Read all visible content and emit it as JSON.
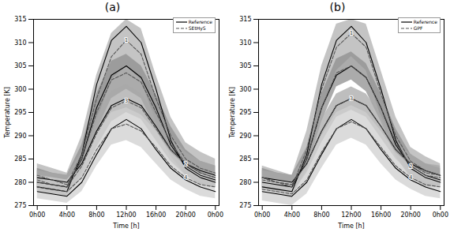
{
  "chart_data": [
    {
      "type": "line",
      "title": "(a)",
      "x_label": "Time [h]",
      "y_label": "Temperature [K]",
      "x": [
        0,
        2,
        4,
        6,
        8,
        10,
        12,
        14,
        16,
        18,
        20,
        22,
        24
      ],
      "xlim": [
        -0.5,
        24.5
      ],
      "xticks": [
        {
          "value": 0,
          "label": "0h00"
        },
        {
          "value": 4,
          "label": "4h00"
        },
        {
          "value": 8,
          "label": "8h00"
        },
        {
          "value": 12,
          "label": "12h00"
        },
        {
          "value": 16,
          "label": "16h00"
        },
        {
          "value": 20,
          "label": "20h00"
        },
        {
          "value": 24,
          "label": "0h00"
        }
      ],
      "ylim": [
        275,
        315
      ],
      "yticks": [
        275,
        280,
        285,
        290,
        295,
        300,
        305,
        310,
        315
      ],
      "legend": "upper right",
      "series": [
        {
          "name": "Reference",
          "color": "#000000",
          "line_style": "solid",
          "values": [
            279,
            278.5,
            278,
            286,
            301,
            310.5,
            313.5,
            310,
            300,
            289,
            283,
            281,
            280
          ]
        },
        {
          "name": "Reference",
          "color": "#000000",
          "line_style": "solid",
          "values": [
            280,
            279.5,
            279,
            285,
            296,
            303,
            305,
            302.5,
            296,
            288,
            283.5,
            281.5,
            280.5
          ]
        },
        {
          "name": "Reference",
          "color": "#000000",
          "line_style": "solid",
          "values": [
            281,
            280.5,
            280,
            284,
            291,
            296.5,
            298,
            296.5,
            292,
            287,
            284,
            282.5,
            281.5
          ]
        },
        {
          "name": "Reference",
          "color": "#000000",
          "line_style": "solid",
          "values": [
            278,
            277.5,
            277,
            280,
            286,
            291.5,
            293.5,
            291.5,
            287,
            283,
            280.5,
            279,
            278
          ]
        },
        {
          "name": "SEtHyS",
          "color": "#555555",
          "line_style": "dashed",
          "label": "1",
          "values": [
            281.5,
            280.5,
            279.5,
            286,
            298,
            307,
            310.5,
            307.5,
            298,
            290,
            285,
            283,
            282
          ],
          "lower": [
            279,
            278,
            277,
            282,
            293,
            302,
            305,
            302,
            293,
            286,
            281.5,
            279.5,
            279
          ],
          "upper": [
            284,
            283,
            282,
            290,
            303,
            312,
            315,
            313,
            303,
            294,
            288.5,
            286.5,
            285
          ]
        },
        {
          "name": "SEtHyS",
          "color": "#555555",
          "line_style": "dashed",
          "label": "2",
          "values": [
            280.5,
            279.5,
            279,
            285,
            295,
            302,
            303.5,
            301.5,
            295,
            288.5,
            284,
            282,
            281
          ],
          "lower": [
            278.5,
            277.5,
            277,
            282,
            291,
            298,
            300,
            298,
            291.5,
            285.5,
            281.5,
            279.5,
            279
          ],
          "upper": [
            283,
            282,
            281.5,
            288,
            299,
            306,
            307.5,
            305,
            299,
            292,
            287,
            284.5,
            283.5
          ]
        },
        {
          "name": "SEtHyS",
          "color": "#555555",
          "line_style": "dashed",
          "label": "3",
          "values": [
            280,
            279.5,
            279,
            283.5,
            290.5,
            296,
            297.5,
            296,
            291.5,
            287,
            284,
            282,
            281
          ],
          "lower": [
            278,
            277.5,
            277,
            281,
            287.5,
            293,
            295,
            293.5,
            289,
            284.5,
            281.5,
            280,
            279
          ],
          "upper": [
            282.5,
            282,
            281.5,
            286.5,
            294,
            299.5,
            301,
            299,
            294.5,
            290,
            286.5,
            284.5,
            283.5
          ]
        },
        {
          "name": "SEtHyS",
          "color": "#555555",
          "line_style": "dashed",
          "label": "4",
          "values": [
            279,
            278.5,
            278,
            281,
            287,
            291.5,
            292.5,
            291,
            287.5,
            283.5,
            281,
            279.5,
            279
          ],
          "lower": [
            276.5,
            276,
            275.5,
            278,
            283.5,
            288,
            289,
            287.5,
            284,
            280.5,
            278.5,
            277,
            276.5
          ],
          "upper": [
            281.5,
            281,
            280.5,
            284,
            290.5,
            295,
            296,
            294.5,
            291,
            286.5,
            283.5,
            282,
            281.5
          ]
        }
      ]
    },
    {
      "type": "line",
      "title": "(b)",
      "x_label": "Time [h]",
      "y_label": "Temperature [K]",
      "x": [
        0,
        2,
        4,
        6,
        8,
        10,
        12,
        14,
        16,
        18,
        20,
        22,
        24
      ],
      "xlim": [
        -0.5,
        24.5
      ],
      "xticks": [
        {
          "value": 0,
          "label": "0h00"
        },
        {
          "value": 4,
          "label": "4h00"
        },
        {
          "value": 8,
          "label": "8h00"
        },
        {
          "value": 12,
          "label": "12h00"
        },
        {
          "value": 16,
          "label": "16h00"
        },
        {
          "value": 20,
          "label": "20h00"
        },
        {
          "value": 24,
          "label": "0h00"
        }
      ],
      "ylim": [
        275,
        315
      ],
      "yticks": [
        275,
        280,
        285,
        290,
        295,
        300,
        305,
        310,
        315
      ],
      "legend": "upper right",
      "series": [
        {
          "name": "Reference",
          "color": "#000000",
          "line_style": "solid",
          "values": [
            279,
            278.5,
            278,
            286,
            301,
            310.5,
            313.5,
            310,
            300,
            289,
            283,
            281,
            280
          ]
        },
        {
          "name": "Reference",
          "color": "#000000",
          "line_style": "solid",
          "values": [
            280,
            279.5,
            279,
            285,
            296,
            303,
            305,
            302.5,
            296,
            288,
            283.5,
            281.5,
            280.5
          ]
        },
        {
          "name": "Reference",
          "color": "#000000",
          "line_style": "solid",
          "values": [
            281,
            280.5,
            280,
            284,
            291,
            296.5,
            298,
            296.5,
            292,
            287,
            284,
            282.5,
            281.5
          ]
        },
        {
          "name": "Reference",
          "color": "#000000",
          "line_style": "solid",
          "values": [
            278,
            277.5,
            277,
            280,
            286,
            291.5,
            293.5,
            291.5,
            287,
            283,
            280.5,
            279,
            278
          ]
        },
        {
          "name": "GPF",
          "color": "#555555",
          "line_style": "dashed",
          "label": "1",
          "values": [
            281,
            280,
            279,
            287,
            300,
            309,
            312,
            309,
            299,
            290,
            284.5,
            282.5,
            281.5
          ],
          "lower": [
            278.5,
            277.5,
            276.5,
            283,
            295,
            304,
            307,
            304,
            294,
            286,
            281.5,
            279.5,
            279
          ],
          "upper": [
            283.5,
            282.5,
            281.5,
            291,
            305,
            314,
            315,
            314,
            304,
            294,
            287.5,
            285.5,
            284
          ]
        },
        {
          "name": "GPF",
          "color": "#555555",
          "line_style": "dashed",
          "label": "2",
          "values": [
            281,
            280,
            279.5,
            285,
            296,
            303.5,
            305,
            302.5,
            296,
            288.5,
            283.5,
            281.5,
            281
          ],
          "lower": [
            279,
            278,
            277.5,
            282.5,
            293,
            300.5,
            302,
            299.5,
            293,
            285.5,
            281,
            279,
            279
          ],
          "upper": [
            283,
            282,
            281.5,
            287.5,
            299,
            306.5,
            308,
            305.5,
            299,
            291.5,
            286,
            284,
            283
          ]
        },
        {
          "name": "GPF",
          "color": "#555555",
          "line_style": "dashed",
          "label": "3",
          "values": [
            280.5,
            280,
            279.5,
            284,
            291,
            296.5,
            298,
            296.5,
            292,
            287,
            284,
            282,
            281.5
          ],
          "lower": [
            278.5,
            278,
            277.5,
            282,
            288.5,
            294,
            295.5,
            294,
            289.5,
            285,
            282,
            280,
            279.5
          ],
          "upper": [
            282.5,
            282,
            281.5,
            286,
            293.5,
            299,
            300.5,
            299,
            294.5,
            289,
            286,
            284,
            283.5
          ]
        },
        {
          "name": "GPF",
          "color": "#555555",
          "line_style": "dashed",
          "label": "4",
          "values": [
            278.5,
            278,
            277.5,
            280.5,
            286.5,
            291.5,
            293,
            291.5,
            287.5,
            283.5,
            281,
            279.5,
            279
          ],
          "lower": [
            276,
            275.5,
            275,
            277.5,
            283,
            288,
            289.5,
            288,
            284,
            280.5,
            278.5,
            277,
            276.5
          ],
          "upper": [
            281,
            280.5,
            280,
            283.5,
            290,
            295,
            296.5,
            295,
            291,
            286.5,
            283.5,
            282,
            281.5
          ]
        }
      ]
    }
  ]
}
